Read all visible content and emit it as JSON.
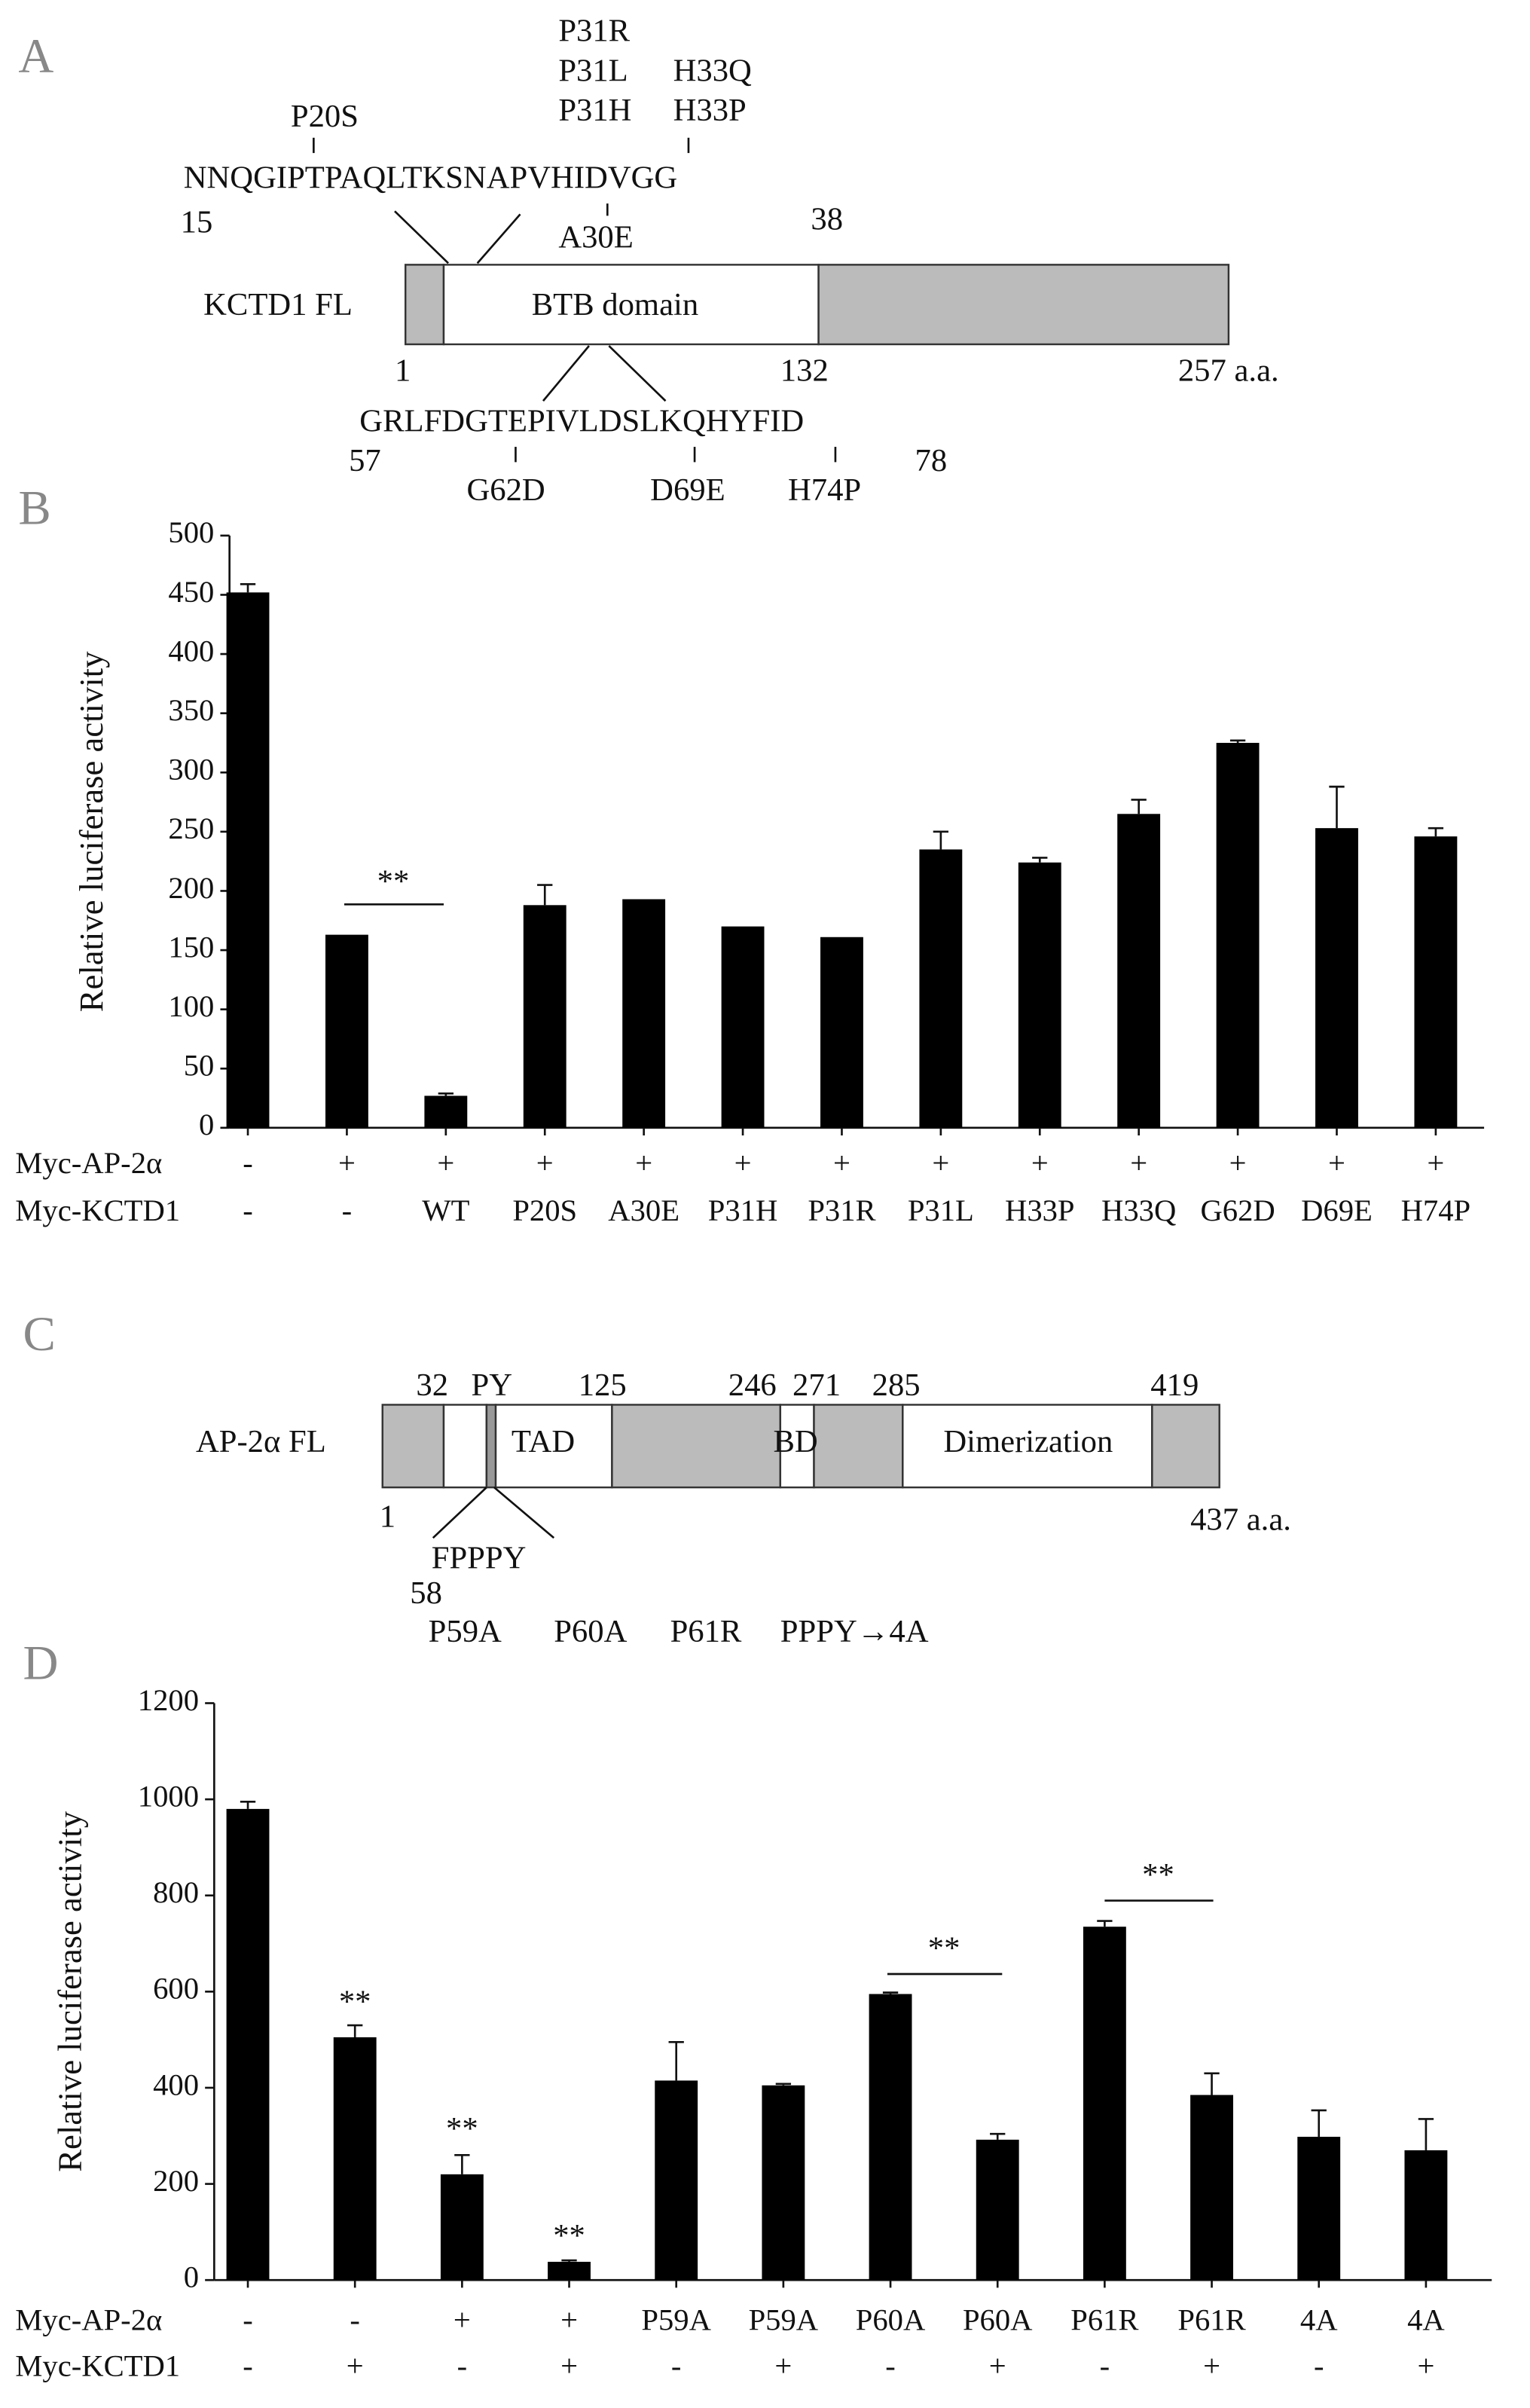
{
  "panel_labels": [
    "A",
    "B",
    "C",
    "D"
  ],
  "diagram_a": {
    "sequence_top": "NNQGIPTPAQLTKSNAPVHIDVGG",
    "start_top": "15",
    "end_top": "38",
    "mutations_top": [
      "P20S",
      "P31R",
      "P31L",
      "P31H",
      "H33Q",
      "H33P",
      "A30E"
    ],
    "protein": "KCTD1 FL",
    "domain": "BTB domain",
    "positions": [
      "1",
      "132",
      "257 a.a."
    ],
    "sequence_bottom": "GRLFDGTEPIVLDSLKQHYFID",
    "start_bottom": "57",
    "end_bottom": "78",
    "mutations_bottom": [
      "G62D",
      "D69E",
      "H74P"
    ]
  },
  "diagram_c": {
    "positions_top": [
      "32",
      "PY",
      "125",
      "246",
      "271",
      "285",
      "419"
    ],
    "protein": "AP-2α FL",
    "domains": [
      "TAD",
      "BD",
      "Dimerization"
    ],
    "positions_bottom": [
      "1",
      "437 a.a."
    ],
    "motif": "FPPPY",
    "motif_start": "58",
    "mutants": [
      "P59A",
      "P60A",
      "P61R",
      "PPPY→4A"
    ]
  },
  "chart_data": [
    {
      "type": "bar",
      "y_label": "Relative luciferase activity",
      "color": "#000000",
      "rows": [
        {
          "name": "Myc-AP-2α",
          "labels": [
            "-",
            "+",
            "+",
            "+",
            "+",
            "+",
            "+",
            "+",
            "+",
            "+",
            "+",
            "+",
            "+"
          ]
        },
        {
          "name": "Myc-KCTD1",
          "labels": [
            "-",
            "-",
            "WT",
            "P20S",
            "A30E",
            "P31H",
            "P31R",
            "P31L",
            "H33P",
            "H33Q",
            "G62D",
            "D69E",
            "H74P"
          ]
        }
      ],
      "values": [
        452,
        163,
        27,
        188,
        193,
        170,
        161,
        235,
        224,
        265,
        325,
        253,
        246
      ],
      "errors": [
        7,
        0,
        2,
        17,
        0,
        0,
        0,
        15,
        4,
        12,
        2,
        35,
        7
      ],
      "ylim": [
        0,
        500
      ],
      "yticks": [
        0,
        50,
        100,
        150,
        200,
        250,
        300,
        350,
        400,
        450,
        500
      ],
      "grid": false,
      "annotations": [
        "**"
      ]
    },
    {
      "type": "bar",
      "y_label": "Relative luciferase activity",
      "color": "#000000",
      "rows": [
        {
          "name": "Myc-AP-2α",
          "labels": [
            "-",
            "-",
            "+",
            "+",
            "P59A",
            "P59A",
            "P60A",
            "P60A",
            "P61R",
            "P61R",
            "4A",
            "4A"
          ]
        },
        {
          "name": "Myc-KCTD1",
          "labels": [
            "-",
            "+",
            "-",
            "+",
            "-",
            "+",
            "-",
            "+",
            "-",
            "+",
            "-",
            "+"
          ]
        }
      ],
      "values": [
        980,
        505,
        220,
        38,
        415,
        405,
        595,
        292,
        735,
        385,
        298,
        270
      ],
      "errors": [
        15,
        25,
        40,
        3,
        80,
        3,
        3,
        12,
        12,
        45,
        55,
        65
      ],
      "ylim": [
        0,
        1200
      ],
      "yticks": [
        0,
        200,
        400,
        600,
        800,
        1000,
        1200
      ],
      "grid": false,
      "annotations": [
        "**",
        "**",
        "**",
        "**",
        "**"
      ]
    }
  ]
}
